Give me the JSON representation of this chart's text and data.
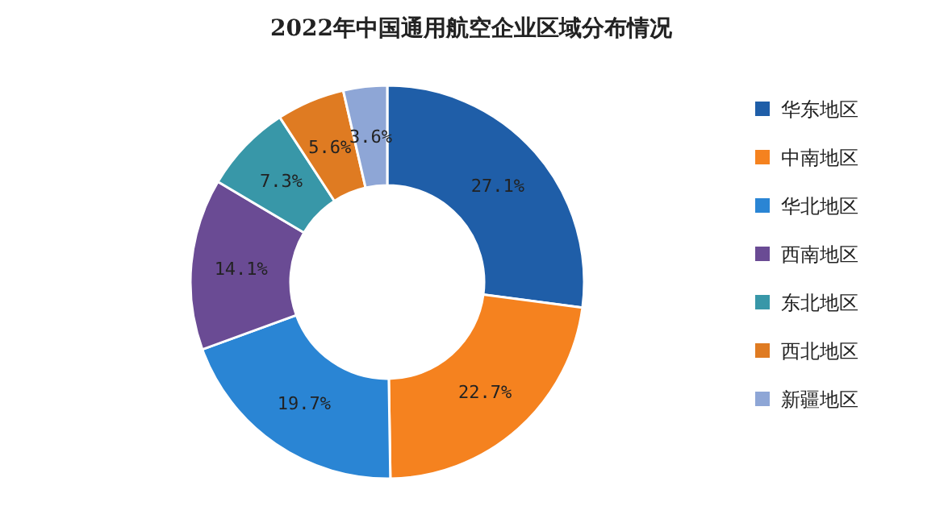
{
  "chart_data": {
    "type": "donut",
    "title": "2022年中国通用航空企业区域分布情况",
    "categories": [
      "华东地区",
      "中南地区",
      "华北地区",
      "西南地区",
      "东北地区",
      "西北地区",
      "新疆地区"
    ],
    "values": [
      27.1,
      22.7,
      19.7,
      14.1,
      7.3,
      5.6,
      3.6
    ],
    "value_labels": [
      "27.1%",
      "22.7%",
      "19.7%",
      "14.1%",
      "7.3%",
      "5.6%",
      "3.6%"
    ],
    "colors": [
      "#1f5ea8",
      "#f5821f",
      "#2a85d4",
      "#6a4b94",
      "#3897a8",
      "#df7b22",
      "#8ea6d6"
    ],
    "legend": "right"
  }
}
